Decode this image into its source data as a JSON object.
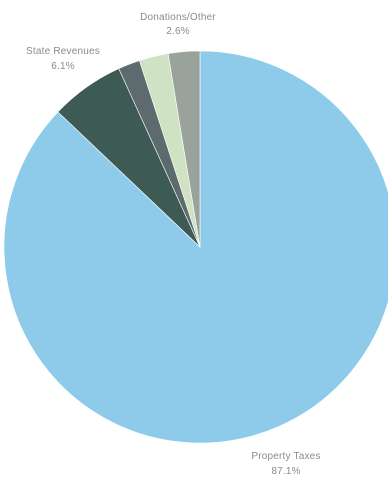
{
  "chart_data": {
    "type": "pie",
    "title": "",
    "slices": [
      {
        "label": "Property Taxes",
        "value_label": "87.1%",
        "value": 87.1,
        "color": "#8ecbeb"
      },
      {
        "label": "State Revenues",
        "value_label": "6.1%",
        "value": 6.1,
        "color": "#3d5a55"
      },
      {
        "label": "",
        "value_label": "",
        "value": 1.8,
        "color": "#5d6b6e"
      },
      {
        "label": "",
        "value_label": "",
        "value": 2.4,
        "color": "#cfe3c4"
      },
      {
        "label": "Donations/Other",
        "value_label": "2.6%",
        "value": 2.6,
        "color": "#9aa29c"
      }
    ],
    "legend": "none",
    "start_angle_deg": 0,
    "direction": "clockwise"
  }
}
